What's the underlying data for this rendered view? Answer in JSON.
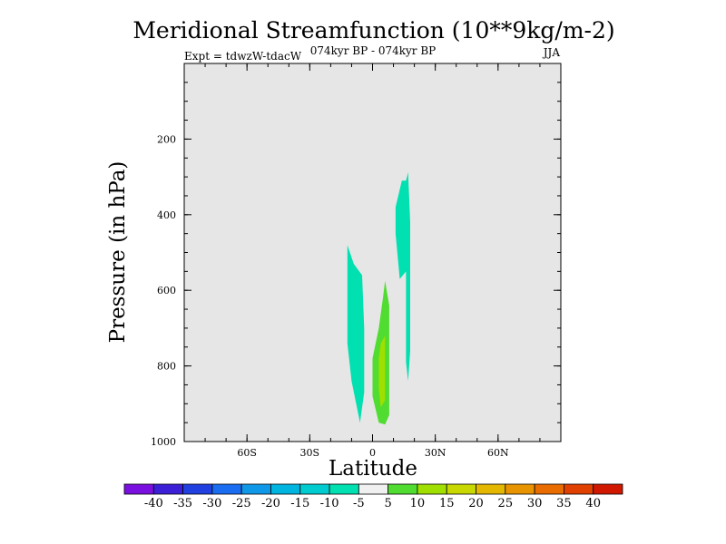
{
  "chart_data": {
    "type": "contour",
    "title": "Meridional Streamfunction (10**9kg/m-2)",
    "subtitle_left": "Expt = tdwzW-tdacW",
    "subtitle_center": "074kyr BP - 074kyr BP",
    "subtitle_right": "JJA",
    "xlabel": "Latitude",
    "ylabel": "Pressure (in hPa)",
    "xlim": [
      -90,
      90
    ],
    "ylim": [
      1000,
      0
    ],
    "x_ticks": [
      {
        "value": -60,
        "label": "60S"
      },
      {
        "value": -30,
        "label": "30S"
      },
      {
        "value": 0,
        "label": "0"
      },
      {
        "value": 30,
        "label": "30N"
      },
      {
        "value": 60,
        "label": "60N"
      }
    ],
    "y_ticks": [
      {
        "value": 200,
        "label": "200"
      },
      {
        "value": 400,
        "label": "400"
      },
      {
        "value": 600,
        "label": "600"
      },
      {
        "value": 800,
        "label": "800"
      },
      {
        "value": 1000,
        "label": "1000"
      }
    ],
    "background_color": "#e6e6e6",
    "contour_regions": [
      {
        "name": "negative-cell-upper",
        "level": "-10 to -5",
        "color": "#00e0b0",
        "points": [
          [
            11,
            380
          ],
          [
            14,
            310
          ],
          [
            16,
            310
          ],
          [
            17,
            288
          ],
          [
            18,
            420
          ],
          [
            18,
            760
          ],
          [
            17,
            840
          ],
          [
            16,
            790
          ],
          [
            16,
            550
          ],
          [
            13,
            570
          ],
          [
            11,
            450
          ]
        ]
      },
      {
        "name": "negative-cell-lower",
        "level": "-10 to -5",
        "color": "#00e0b0",
        "points": [
          [
            -12,
            480
          ],
          [
            -9,
            530
          ],
          [
            -5,
            560
          ],
          [
            -4,
            700
          ],
          [
            -4,
            870
          ],
          [
            -6,
            950
          ],
          [
            -10,
            840
          ],
          [
            -12,
            740
          ]
        ]
      },
      {
        "name": "positive-cell-outer",
        "level": "5 to 10",
        "color": "#50dc30",
        "points": [
          [
            6,
            575
          ],
          [
            8,
            640
          ],
          [
            8,
            760
          ],
          [
            8,
            930
          ],
          [
            6,
            955
          ],
          [
            3,
            950
          ],
          [
            0,
            880
          ],
          [
            0,
            780
          ],
          [
            3,
            700
          ],
          [
            5,
            620
          ]
        ]
      },
      {
        "name": "positive-cell-inner",
        "level": "10 to 15",
        "color": "#a0e000",
        "points": [
          [
            4,
            740
          ],
          [
            6,
            720
          ],
          [
            6,
            890
          ],
          [
            4,
            910
          ],
          [
            3,
            860
          ],
          [
            3,
            780
          ]
        ]
      }
    ],
    "colorbar": {
      "labels": [
        "-40",
        "-35",
        "-30",
        "-25",
        "-20",
        "-15",
        "-10",
        "-5",
        "5",
        "10",
        "15",
        "20",
        "25",
        "30",
        "35",
        "40"
      ],
      "colors": [
        "#7a10e0",
        "#3b20d8",
        "#2040e0",
        "#1a6cf0",
        "#1098e8",
        "#00b4e0",
        "#00ccd0",
        "#00e0b0",
        "#f0f0f0",
        "#50dc30",
        "#a0e000",
        "#c8d800",
        "#e4b800",
        "#e89400",
        "#e86c00",
        "#e04000",
        "#d01800"
      ]
    }
  }
}
